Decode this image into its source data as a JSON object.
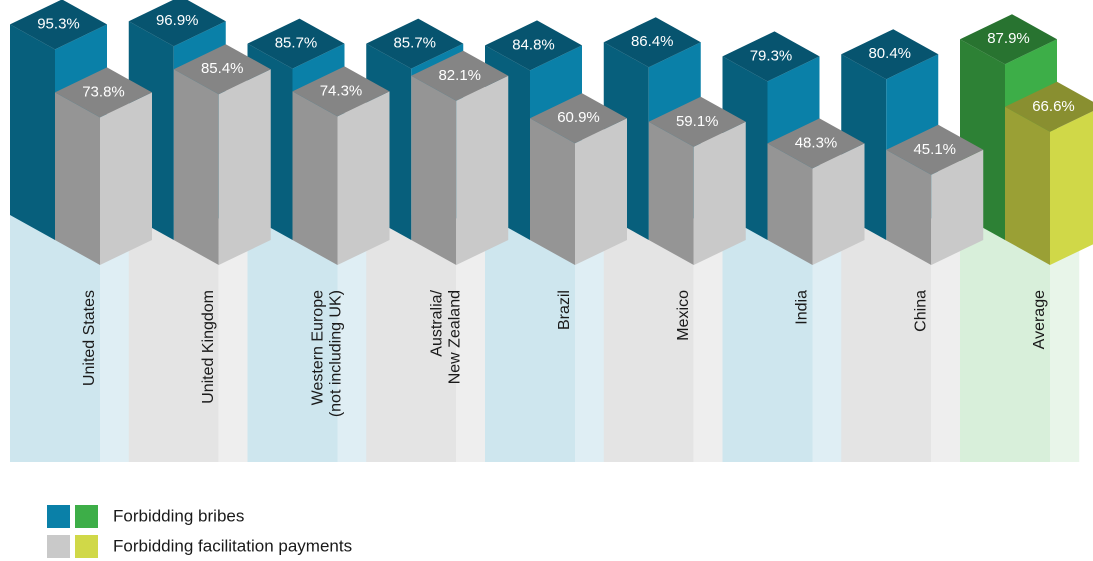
{
  "chart_data": {
    "type": "bar3d",
    "categories": [
      "United States",
      "United Kingdom",
      "Western Europe\n(not including UK)",
      "Australia/\nNew Zealand",
      "Brazil",
      "Mexico",
      "India",
      "China",
      "Average"
    ],
    "series": [
      {
        "name": "Forbidding bribes",
        "colors": [
          "#0a80a8",
          "#0a80a8",
          "#0a80a8",
          "#0a80a8",
          "#0a80a8",
          "#0a80a8",
          "#0a80a8",
          "#0a80a8",
          "#3dae48"
        ],
        "values": [
          95.3,
          96.9,
          85.7,
          85.7,
          84.8,
          86.4,
          79.3,
          80.4,
          87.9
        ],
        "value_labels": [
          "95.3%",
          "96.9%",
          "85.7%",
          "85.7%",
          "84.8%",
          "86.4%",
          "79.3%",
          "80.4%",
          "87.9%"
        ]
      },
      {
        "name": "Forbidding facilitation payments",
        "colors": [
          "#c9c9c9",
          "#c9c9c9",
          "#c9c9c9",
          "#c9c9c9",
          "#c9c9c9",
          "#c9c9c9",
          "#c9c9c9",
          "#c9c9c9",
          "#d0d848"
        ],
        "values": [
          73.8,
          85.4,
          74.3,
          82.1,
          60.9,
          59.1,
          48.3,
          45.1,
          66.6
        ],
        "value_labels": [
          "73.8%",
          "85.4%",
          "74.3%",
          "82.1%",
          "60.9%",
          "59.1%",
          "48.3%",
          "45.1%",
          "66.6%"
        ]
      }
    ]
  }
}
